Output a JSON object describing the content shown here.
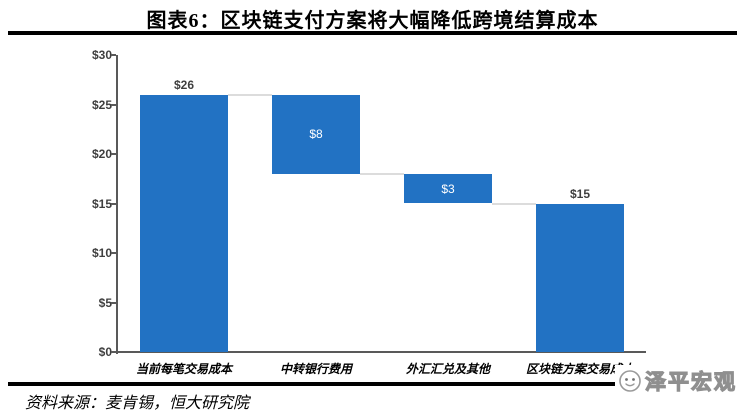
{
  "header": {
    "title": "图表6：区块链支付方案将大幅降低跨境结算成本"
  },
  "footer": {
    "source": "资料来源：麦肯锡，恒大研究院",
    "watermark": "泽平宏观"
  },
  "chart_data": {
    "type": "bar",
    "subtype": "waterfall",
    "title": "图表6：区块链支付方案将大幅降低跨境结算成本",
    "categories": [
      "当前每笔交易成本",
      "中转银行费用",
      "外汇汇兑及其他",
      "区块链方案交易成本"
    ],
    "bars": [
      {
        "category": "当前每笔交易成本",
        "from": 0,
        "to": 26,
        "label": "$26",
        "label_pos": "above"
      },
      {
        "category": "中转银行费用",
        "from": 18,
        "to": 26,
        "label": "$8",
        "label_pos": "inside"
      },
      {
        "category": "外汇汇兑及其他",
        "from": 15,
        "to": 18,
        "label": "$3",
        "label_pos": "inside"
      },
      {
        "category": "区块链方案交易成本",
        "from": 0,
        "to": 15,
        "label": "$15",
        "label_pos": "above"
      }
    ],
    "deltas": [
      26,
      -8,
      -3,
      15
    ],
    "y_ticks": [
      "$30",
      "$25",
      "$20",
      "$15",
      "$10",
      "$5",
      "$0"
    ],
    "ylim": [
      0,
      30
    ],
    "xlabel": "",
    "ylabel": "",
    "grid": false,
    "legend": false,
    "bar_color": "#2272C3",
    "connector_color": "#DCDCDC",
    "axis_color": "#595959",
    "tick_label_color": "#3f3f3f",
    "inside_label_color": "#ffffff"
  }
}
